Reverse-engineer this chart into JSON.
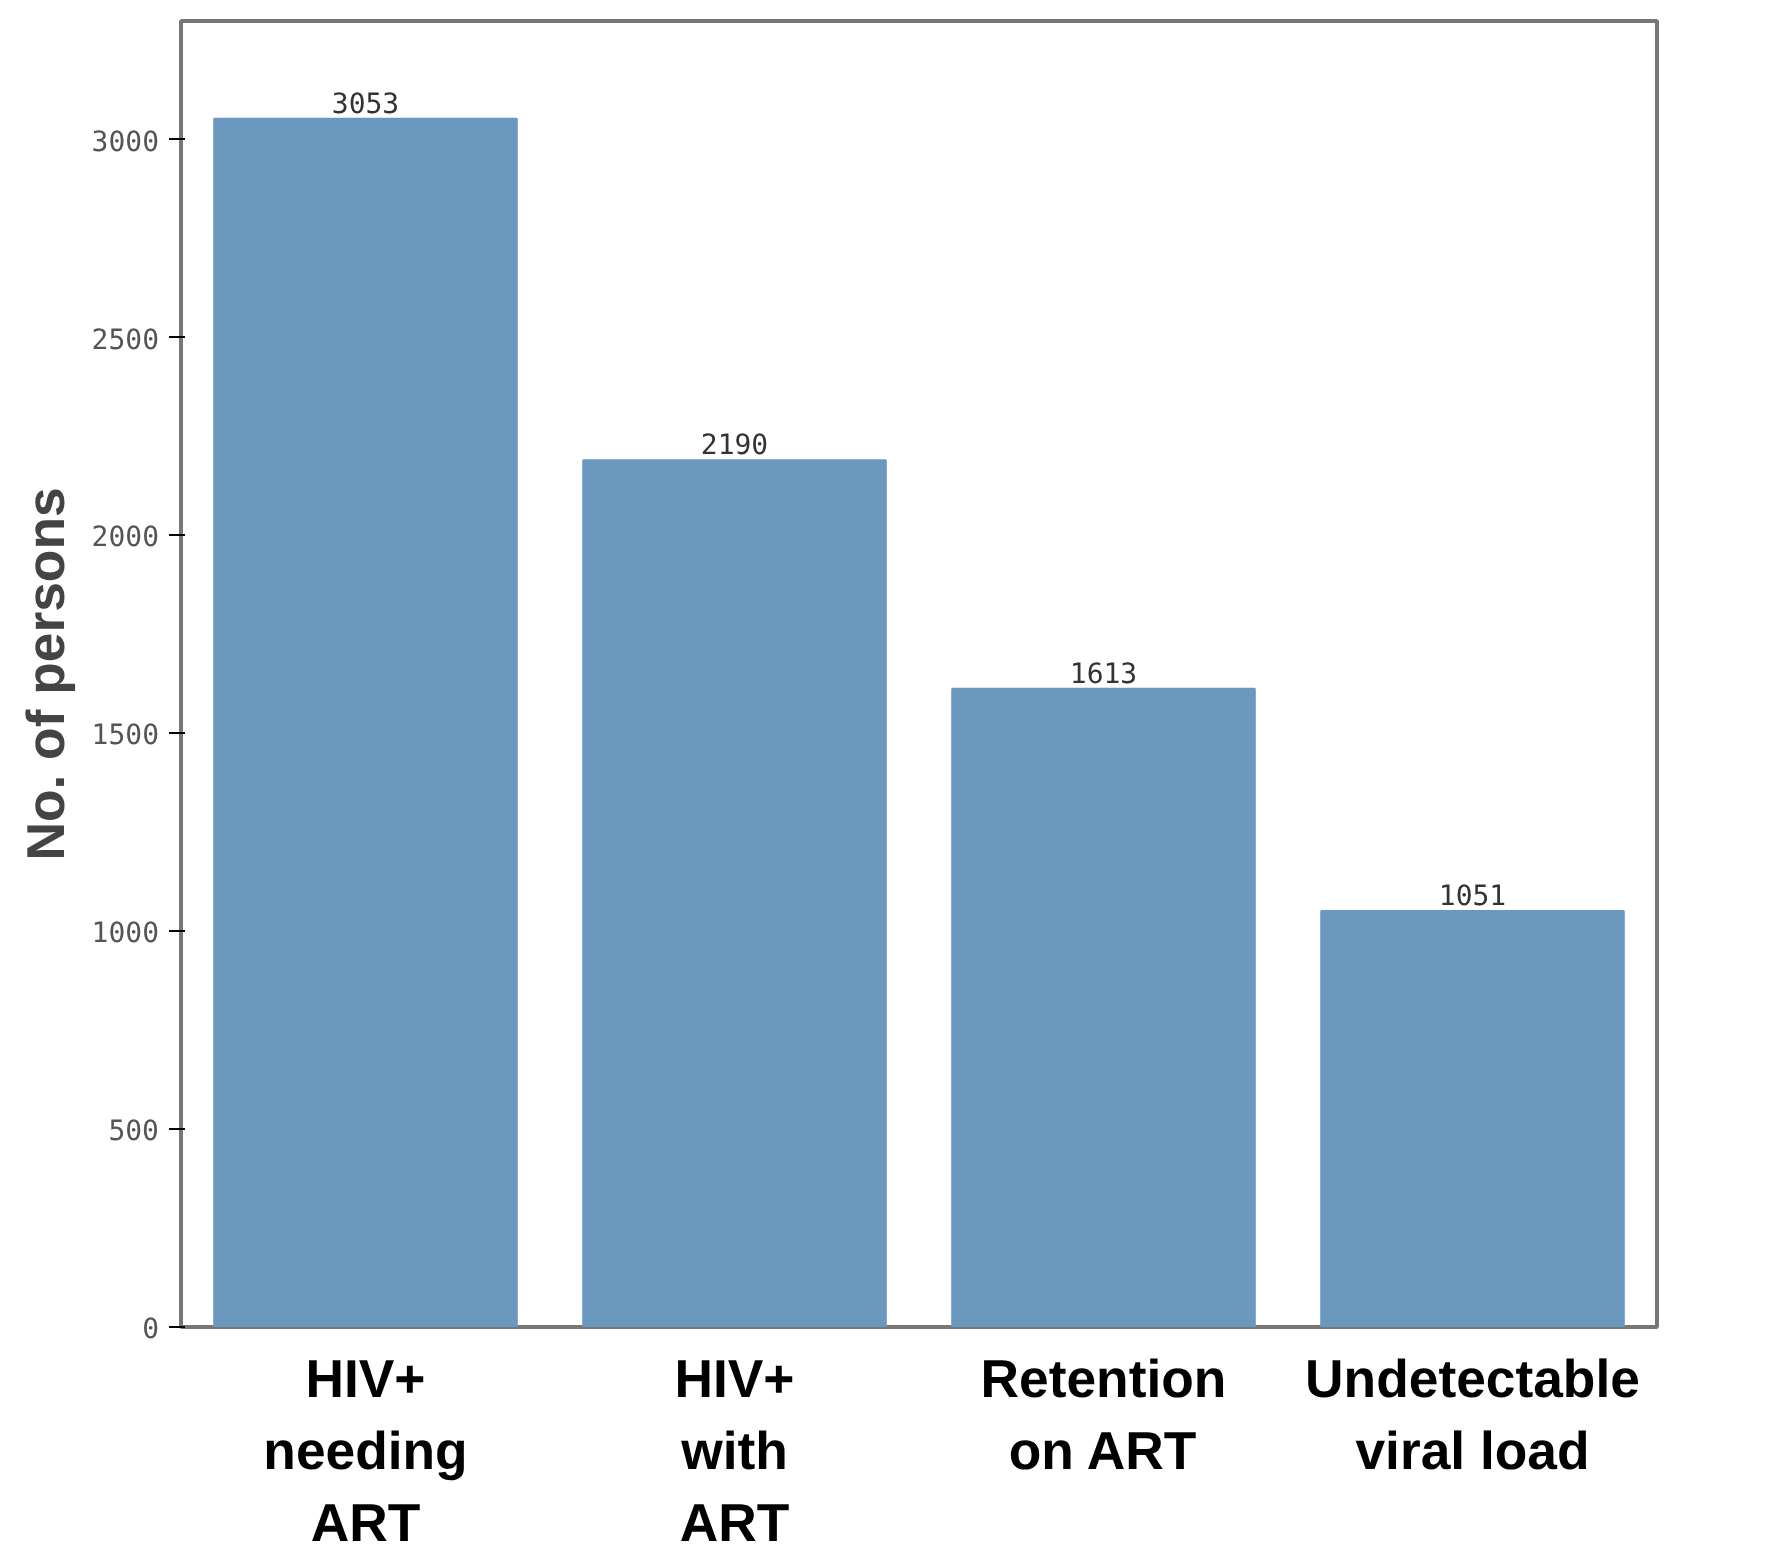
{
  "chart_data": {
    "type": "bar",
    "ylabel": "No. of persons",
    "categories": [
      "HIV+\nneeding\nART",
      "HIV+\nwith\nART",
      "Retention\non ART",
      "Undetectable\nviral load"
    ],
    "values": [
      3053,
      2190,
      1613,
      1051
    ],
    "color": "#6b98bf",
    "ylim": [
      0,
      3300
    ],
    "yticks": [
      0,
      500,
      1000,
      1500,
      2000,
      2500,
      3000
    ],
    "data_labels": true
  }
}
